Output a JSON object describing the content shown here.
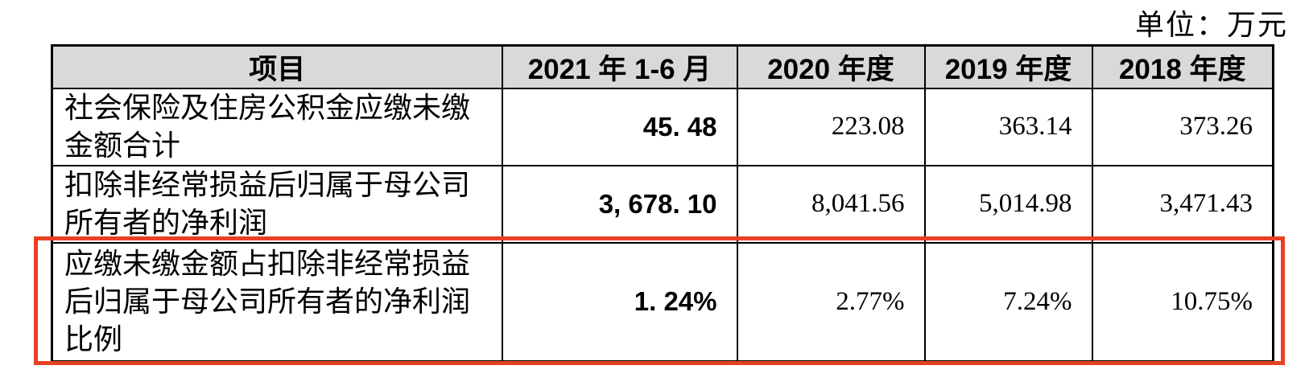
{
  "unit_label": "单位：万元",
  "colors": {
    "highlight": "#e84023",
    "header_bg": "#d9d9d9",
    "border": "#000000"
  },
  "table": {
    "columns": {
      "item": "项目",
      "p2021": "2021 年 1-6 月",
      "p2020": "2020 年度",
      "p2019": "2019 年度",
      "p2018": "2018 年度"
    },
    "rows": [
      {
        "label": "社会保险及住房公积金应缴未缴金额合计",
        "values": [
          "45. 48",
          "223.08",
          "363.14",
          "373.26"
        ],
        "highlighted": false
      },
      {
        "label": "扣除非经常损益后归属于母公司所有者的净利润",
        "values": [
          "3, 678. 10",
          "8,041.56",
          "5,014.98",
          "3,471.43"
        ],
        "highlighted": false
      },
      {
        "label": "应缴未缴金额占扣除非经常损益后归属于母公司所有者的净利润比例",
        "values": [
          "1. 24%",
          "2.77%",
          "7.24%",
          "10.75%"
        ],
        "highlighted": true
      }
    ]
  }
}
